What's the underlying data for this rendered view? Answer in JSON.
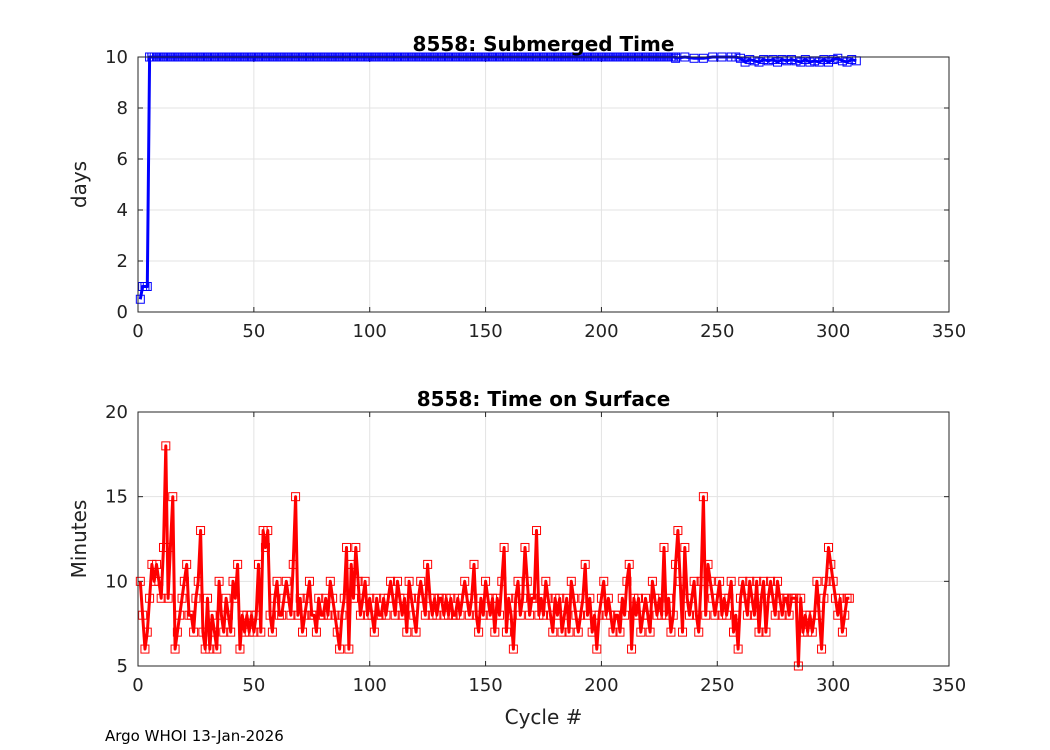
{
  "footer": "Argo WHOI 13-Jan-2026",
  "chart_data": [
    {
      "type": "line",
      "title": "8558: Submerged Time",
      "xlabel": "",
      "ylabel": "days",
      "xlim": [
        0,
        350
      ],
      "ylim": [
        0,
        10
      ],
      "xticks": [
        0,
        50,
        100,
        150,
        200,
        250,
        300,
        350
      ],
      "yticks": [
        0,
        2,
        4,
        6,
        8,
        10
      ],
      "grid": true,
      "marker": "square",
      "color": "#0000ff",
      "series": [
        {
          "x": [
            1,
            2,
            3,
            4,
            5,
            6
          ],
          "y": [
            0.5,
            1,
            1,
            1,
            10,
            10
          ]
        },
        {
          "x_range": [
            6,
            232
          ],
          "y": 10
        },
        {
          "x": [
            232,
            236,
            240,
            244,
            248,
            252,
            256,
            258,
            260,
            262,
            264,
            266,
            268,
            270,
            272,
            274,
            276,
            278,
            280,
            282,
            284,
            286,
            288,
            290,
            292,
            294,
            296,
            298,
            300,
            302,
            304,
            306,
            308,
            310
          ],
          "y": [
            9.95,
            10,
            9.95,
            9.95,
            10,
            10,
            10,
            10,
            9.95,
            9.8,
            9.9,
            9.85,
            9.8,
            9.9,
            9.85,
            9.9,
            9.8,
            9.9,
            9.85,
            9.9,
            9.85,
            9.8,
            9.9,
            9.8,
            9.85,
            9.8,
            9.9,
            9.8,
            9.9,
            9.95,
            9.85,
            9.8,
            9.9,
            9.85
          ]
        }
      ]
    },
    {
      "type": "line",
      "title": "8558: Time on Surface",
      "xlabel": "Cycle #",
      "ylabel": "Minutes",
      "xlim": [
        0,
        350
      ],
      "ylim": [
        5,
        20
      ],
      "xticks": [
        0,
        50,
        100,
        150,
        200,
        250,
        300,
        350
      ],
      "yticks": [
        5,
        10,
        15,
        20
      ],
      "grid": true,
      "marker": "square",
      "color": "#ff0000",
      "series": [
        {
          "x_start": 1,
          "y": [
            10,
            8,
            6,
            7,
            9,
            11,
            10,
            11,
            10,
            9,
            12,
            18,
            9,
            12,
            15,
            6,
            7,
            8,
            9,
            10,
            11,
            8,
            8,
            7,
            9,
            10,
            13,
            7,
            6,
            9,
            6,
            8,
            7,
            6,
            10,
            8,
            7,
            9,
            8,
            7,
            10,
            9,
            11,
            6,
            8,
            7,
            8,
            7,
            8,
            7,
            8,
            11,
            7,
            13,
            12,
            13,
            8,
            7,
            9,
            10,
            8,
            8,
            9,
            10,
            9,
            8,
            11,
            15,
            8,
            9,
            7,
            8,
            9,
            10,
            8,
            8,
            7,
            9,
            8,
            8,
            9,
            8,
            10,
            9,
            8,
            7,
            6,
            8,
            9,
            12,
            6,
            11,
            9,
            12,
            10,
            8,
            9,
            10,
            8,
            9,
            8,
            7,
            9,
            8,
            8,
            9,
            8,
            9,
            10,
            9,
            8,
            10,
            9,
            8,
            9,
            7,
            10,
            9,
            8,
            7,
            9,
            10,
            9,
            8,
            11,
            9,
            8,
            9,
            8,
            9,
            9,
            8,
            9,
            8,
            9,
            8,
            8,
            9,
            8,
            9,
            10,
            9,
            8,
            9,
            11,
            8,
            7,
            9,
            8,
            10,
            9,
            8,
            9,
            7,
            9,
            8,
            10,
            12,
            7,
            9,
            8,
            6,
            9,
            10,
            8,
            9,
            12,
            10,
            8,
            9,
            9,
            13,
            8,
            9,
            8,
            10,
            9,
            8,
            7,
            9,
            8,
            9,
            7,
            8,
            9,
            7,
            10,
            9,
            8,
            7,
            8,
            9,
            11,
            8,
            9,
            7,
            8,
            6,
            8,
            9,
            10,
            8,
            9,
            8,
            7,
            8,
            8,
            7,
            9,
            8,
            10,
            11,
            6,
            9,
            8,
            9,
            7,
            8,
            9,
            8,
            7,
            10,
            9,
            8,
            9,
            8,
            12,
            8,
            9,
            7,
            8,
            11,
            13,
            10,
            7,
            12,
            9,
            8,
            9,
            10,
            8,
            7,
            10,
            15,
            8,
            11,
            10,
            9,
            8,
            9,
            10,
            8,
            9,
            8,
            9,
            10,
            7,
            8,
            6,
            9,
            10,
            9,
            8,
            10,
            9,
            8,
            10,
            7,
            9,
            10,
            7,
            9,
            10,
            9,
            8,
            10,
            9,
            8,
            9,
            9,
            8,
            9,
            9,
            9,
            5,
            9,
            7,
            8,
            7,
            8,
            7,
            8,
            10,
            8,
            6,
            9,
            10,
            12,
            11,
            10,
            9,
            8,
            9,
            7,
            8,
            9,
            9
          ]
        }
      ]
    }
  ]
}
